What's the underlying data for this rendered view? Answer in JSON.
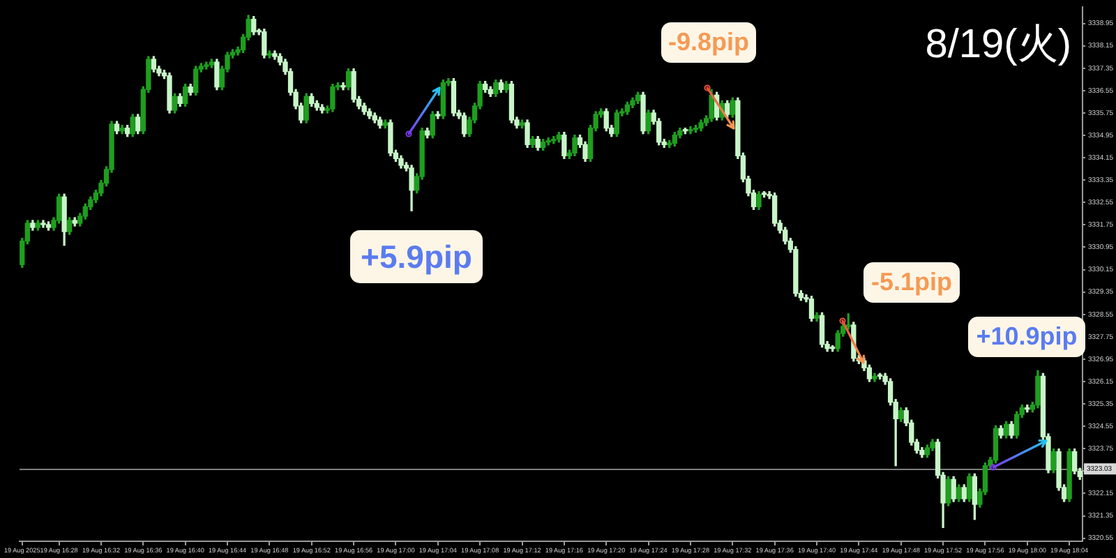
{
  "chart_data": {
    "type": "candlestick",
    "title": "8/19(火)",
    "categories": [
      "19 Aug 2025",
      null,
      null,
      null,
      null,
      null,
      null,
      "19 Aug 16:28",
      null,
      null,
      null,
      null,
      null,
      null,
      null,
      "19 Aug 16:32",
      null,
      null,
      null,
      null,
      null,
      null,
      null,
      "19 Aug 16:36",
      null,
      null,
      null,
      null,
      null,
      null,
      null,
      "19 Aug 16:40",
      null,
      null,
      null,
      null,
      null,
      null,
      null,
      "19 Aug 16:44",
      null,
      null,
      null,
      null,
      null,
      null,
      null,
      "19 Aug 16:48",
      null,
      null,
      null,
      null,
      null,
      null,
      null,
      "19 Aug 16:52",
      null,
      null,
      null,
      null,
      null,
      null,
      null,
      "19 Aug 16:56",
      null,
      null,
      null,
      null,
      null,
      null,
      null,
      "19 Aug 17:00",
      null,
      null,
      null,
      null,
      null,
      null,
      null,
      "19 Aug 17:04",
      null,
      null,
      null,
      null,
      null,
      null,
      null,
      "19 Aug 17:08",
      null,
      null,
      null,
      null,
      null,
      null,
      null,
      "19 Aug 17:12",
      null,
      null,
      null,
      null,
      null,
      null,
      null,
      "19 Aug 17:16",
      null,
      null,
      null,
      null,
      null,
      null,
      null,
      "19 Aug 17:20",
      null,
      null,
      null,
      null,
      null,
      null,
      null,
      "19 Aug 17:24",
      null,
      null,
      null,
      null,
      null,
      null,
      null,
      "19 Aug 17:28",
      null,
      null,
      null,
      null,
      null,
      null,
      null,
      "19 Aug 17:32",
      null,
      null,
      null,
      null,
      null,
      null,
      null,
      "19 Aug 17:36",
      null,
      null,
      null,
      null,
      null,
      null,
      null,
      "19 Aug 17:40",
      null,
      null,
      null,
      null,
      null,
      null,
      null,
      "19 Aug 17:44",
      null,
      null,
      null,
      null,
      null,
      null,
      null,
      "19 Aug 17:48",
      null,
      null,
      null,
      null,
      null,
      null,
      null,
      "19 Aug 17:52",
      null,
      null,
      null,
      null,
      null,
      null,
      null,
      "19 Aug 17:56",
      null,
      null,
      null,
      null,
      null,
      null,
      null,
      "19 Aug 18:00",
      null,
      null,
      null,
      null,
      null,
      null,
      null,
      "19 Aug 18:04",
      null,
      null
    ],
    "ohlc": [
      [
        3330.33,
        3331.27,
        3330.23,
        3331.17
      ],
      [
        3331.17,
        3331.91,
        3331.07,
        3331.81
      ],
      [
        3331.81,
        3331.91,
        3331.56,
        3331.66
      ],
      [
        3331.66,
        3331.91,
        3331.56,
        3331.81
      ],
      [
        3331.81,
        3331.91,
        3331.66,
        3331.76
      ],
      [
        3331.76,
        3331.86,
        3331.56,
        3331.66
      ],
      [
        3331.66,
        3332.01,
        3331.56,
        3331.91
      ],
      [
        3331.91,
        3332.85,
        3331.81,
        3332.75
      ],
      [
        3332.75,
        3332.85,
        3331.02,
        3331.51
      ],
      [
        3331.51,
        3332.01,
        3331.41,
        3331.91
      ],
      [
        3331.91,
        3332.01,
        3331.71,
        3331.81
      ],
      [
        3331.81,
        3332.16,
        3331.71,
        3332.06
      ],
      [
        3332.06,
        3332.5,
        3331.96,
        3332.4
      ],
      [
        3332.4,
        3332.75,
        3332.3,
        3332.65
      ],
      [
        3332.65,
        3332.99,
        3332.55,
        3332.89
      ],
      [
        3332.89,
        3333.34,
        3332.79,
        3333.24
      ],
      [
        3333.24,
        3333.83,
        3333.14,
        3333.73
      ],
      [
        3333.73,
        3335.45,
        3333.63,
        3335.35
      ],
      [
        3335.35,
        3335.45,
        3335.01,
        3335.11
      ],
      [
        3335.11,
        3335.31,
        3335.01,
        3335.21
      ],
      [
        3335.21,
        3335.31,
        3334.91,
        3335.01
      ],
      [
        3335.01,
        3335.7,
        3334.91,
        3335.6
      ],
      [
        3335.6,
        3335.7,
        3335.01,
        3335.11
      ],
      [
        3335.11,
        3336.69,
        3335.01,
        3336.59
      ],
      [
        3336.59,
        3337.77,
        3336.49,
        3337.67
      ],
      [
        3337.67,
        3337.77,
        3337.22,
        3337.32
      ],
      [
        3337.32,
        3337.42,
        3337.08,
        3337.18
      ],
      [
        3337.18,
        3337.28,
        3336.98,
        3337.08
      ],
      [
        3337.08,
        3337.18,
        3335.75,
        3335.85
      ],
      [
        3335.85,
        3336.44,
        3335.75,
        3336.34
      ],
      [
        3336.34,
        3336.44,
        3335.99,
        3336.09
      ],
      [
        3336.09,
        3336.78,
        3335.99,
        3336.68
      ],
      [
        3336.68,
        3336.78,
        3336.39,
        3336.49
      ],
      [
        3336.49,
        3337.42,
        3336.39,
        3337.32
      ],
      [
        3337.32,
        3337.52,
        3337.22,
        3337.42
      ],
      [
        3337.42,
        3337.57,
        3337.32,
        3337.47
      ],
      [
        3337.47,
        3337.67,
        3337.37,
        3337.57
      ],
      [
        3337.57,
        3337.67,
        3336.58,
        3336.68
      ],
      [
        3336.68,
        3337.42,
        3336.58,
        3337.32
      ],
      [
        3337.32,
        3337.92,
        3337.22,
        3337.82
      ],
      [
        3337.82,
        3338.02,
        3337.72,
        3337.92
      ],
      [
        3337.92,
        3338.11,
        3337.82,
        3338.01
      ],
      [
        3338.01,
        3338.56,
        3337.91,
        3338.46
      ],
      [
        3338.46,
        3339.24,
        3338.36,
        3339.1
      ],
      [
        3339.1,
        3339.2,
        3338.55,
        3338.65
      ],
      [
        3338.65,
        3338.75,
        3338.55,
        3338.65
      ],
      [
        3338.65,
        3338.75,
        3337.72,
        3337.82
      ],
      [
        3337.82,
        3337.97,
        3337.72,
        3337.87
      ],
      [
        3337.87,
        3337.97,
        3337.67,
        3337.77
      ],
      [
        3337.77,
        3337.87,
        3337.47,
        3337.57
      ],
      [
        3337.57,
        3337.67,
        3337.13,
        3337.23
      ],
      [
        3337.23,
        3337.33,
        3336.39,
        3336.49
      ],
      [
        3336.49,
        3336.59,
        3335.9,
        3336.0
      ],
      [
        3336.0,
        3336.1,
        3335.4,
        3335.5
      ],
      [
        3335.5,
        3336.44,
        3335.4,
        3336.34
      ],
      [
        3336.34,
        3336.44,
        3335.99,
        3336.09
      ],
      [
        3336.09,
        3336.19,
        3335.85,
        3335.95
      ],
      [
        3335.95,
        3336.05,
        3335.75,
        3335.85
      ],
      [
        3335.85,
        3336.0,
        3335.75,
        3335.9
      ],
      [
        3335.9,
        3336.78,
        3335.8,
        3336.68
      ],
      [
        3336.68,
        3336.83,
        3336.58,
        3336.73
      ],
      [
        3336.73,
        3336.83,
        3336.58,
        3336.68
      ],
      [
        3336.68,
        3337.33,
        3336.58,
        3337.23
      ],
      [
        3337.23,
        3337.33,
        3336.14,
        3336.24
      ],
      [
        3336.24,
        3336.34,
        3335.9,
        3336.0
      ],
      [
        3336.0,
        3336.1,
        3335.7,
        3335.8
      ],
      [
        3335.8,
        3335.9,
        3335.55,
        3335.65
      ],
      [
        3335.65,
        3335.75,
        3335.4,
        3335.5
      ],
      [
        3335.5,
        3335.6,
        3335.21,
        3335.31
      ],
      [
        3335.31,
        3335.5,
        3335.21,
        3335.4
      ],
      [
        3335.4,
        3335.5,
        3334.22,
        3334.32
      ],
      [
        3334.32,
        3334.42,
        3334.02,
        3334.12
      ],
      [
        3334.12,
        3334.22,
        3333.78,
        3333.88
      ],
      [
        3333.88,
        3333.98,
        3333.68,
        3333.78
      ],
      [
        3333.78,
        3333.88,
        3332.25,
        3332.99
      ],
      [
        3332.99,
        3333.58,
        3332.89,
        3333.48
      ],
      [
        3333.48,
        3335.21,
        3333.38,
        3335.11
      ],
      [
        3335.11,
        3335.21,
        3334.86,
        3334.96
      ],
      [
        3334.96,
        3335.8,
        3334.86,
        3335.7
      ],
      [
        3335.7,
        3335.8,
        3335.55,
        3335.65
      ],
      [
        3335.65,
        3336.93,
        3335.55,
        3336.83
      ],
      [
        3336.83,
        3336.98,
        3336.73,
        3336.88
      ],
      [
        3336.88,
        3336.98,
        3335.65,
        3335.75
      ],
      [
        3335.75,
        3335.85,
        3335.55,
        3335.65
      ],
      [
        3335.65,
        3335.75,
        3334.91,
        3335.01
      ],
      [
        3335.01,
        3335.6,
        3334.91,
        3335.5
      ],
      [
        3335.5,
        3336.1,
        3335.4,
        3336.0
      ],
      [
        3336.0,
        3336.88,
        3335.9,
        3336.78
      ],
      [
        3336.78,
        3336.88,
        3336.49,
        3336.59
      ],
      [
        3336.59,
        3336.69,
        3336.34,
        3336.44
      ],
      [
        3336.44,
        3336.93,
        3336.34,
        3336.83
      ],
      [
        3336.83,
        3336.93,
        3336.49,
        3336.59
      ],
      [
        3336.59,
        3336.88,
        3336.49,
        3336.78
      ],
      [
        3336.78,
        3336.88,
        3335.4,
        3335.5
      ],
      [
        3335.5,
        3335.6,
        3335.21,
        3335.31
      ],
      [
        3335.31,
        3335.5,
        3335.21,
        3335.4
      ],
      [
        3335.4,
        3335.5,
        3334.52,
        3334.62
      ],
      [
        3334.62,
        3334.91,
        3334.52,
        3334.81
      ],
      [
        3334.81,
        3334.91,
        3334.42,
        3334.52
      ],
      [
        3334.52,
        3334.81,
        3334.42,
        3334.71
      ],
      [
        3334.71,
        3334.86,
        3334.61,
        3334.76
      ],
      [
        3334.76,
        3334.91,
        3334.66,
        3334.81
      ],
      [
        3334.81,
        3335.06,
        3334.71,
        3334.96
      ],
      [
        3334.96,
        3335.06,
        3334.12,
        3334.22
      ],
      [
        3334.22,
        3334.42,
        3334.12,
        3334.32
      ],
      [
        3334.32,
        3334.96,
        3334.22,
        3334.86
      ],
      [
        3334.86,
        3334.96,
        3334.52,
        3334.62
      ],
      [
        3334.62,
        3334.72,
        3334.02,
        3334.12
      ],
      [
        3334.12,
        3335.31,
        3334.02,
        3335.21
      ],
      [
        3335.21,
        3335.8,
        3335.11,
        3335.7
      ],
      [
        3335.7,
        3335.9,
        3335.6,
        3335.8
      ],
      [
        3335.8,
        3335.9,
        3335.11,
        3335.21
      ],
      [
        3335.21,
        3335.31,
        3334.91,
        3335.01
      ],
      [
        3335.01,
        3335.85,
        3334.91,
        3335.75
      ],
      [
        3335.75,
        3335.9,
        3335.65,
        3335.8
      ],
      [
        3335.8,
        3336.14,
        3335.7,
        3336.04
      ],
      [
        3336.04,
        3336.29,
        3335.94,
        3336.19
      ],
      [
        3336.19,
        3336.49,
        3336.09,
        3336.39
      ],
      [
        3336.39,
        3336.49,
        3335.01,
        3335.11
      ],
      [
        3335.11,
        3335.85,
        3335.01,
        3335.75
      ],
      [
        3335.75,
        3335.85,
        3335.35,
        3335.45
      ],
      [
        3335.45,
        3335.55,
        3334.61,
        3334.71
      ],
      [
        3334.71,
        3334.81,
        3334.52,
        3334.62
      ],
      [
        3334.62,
        3334.77,
        3334.52,
        3334.67
      ],
      [
        3334.67,
        3335.06,
        3334.57,
        3334.96
      ],
      [
        3334.96,
        3335.21,
        3334.86,
        3335.11
      ],
      [
        3335.11,
        3335.21,
        3335.01,
        3335.11
      ],
      [
        3335.11,
        3335.26,
        3335.01,
        3335.16
      ],
      [
        3335.16,
        3335.31,
        3335.06,
        3335.21
      ],
      [
        3335.21,
        3335.5,
        3335.11,
        3335.4
      ],
      [
        3335.4,
        3335.65,
        3335.3,
        3335.55
      ],
      [
        3335.55,
        3336.59,
        3335.45,
        3336.39
      ],
      [
        3336.39,
        3336.49,
        3335.5,
        3335.6
      ],
      [
        3335.6,
        3336.19,
        3335.5,
        3336.09
      ],
      [
        3336.09,
        3336.19,
        3335.6,
        3335.7
      ],
      [
        3335.7,
        3336.29,
        3335.6,
        3336.19
      ],
      [
        3336.19,
        3336.29,
        3334.12,
        3334.22
      ],
      [
        3334.22,
        3334.32,
        3333.29,
        3333.39
      ],
      [
        3333.39,
        3333.49,
        3332.79,
        3332.89
      ],
      [
        3332.89,
        3332.99,
        3332.3,
        3332.4
      ],
      [
        3332.4,
        3332.94,
        3332.3,
        3332.84
      ],
      [
        3332.84,
        3332.94,
        3332.74,
        3332.84
      ],
      [
        3332.84,
        3332.94,
        3332.69,
        3332.79
      ],
      [
        3332.79,
        3332.89,
        3331.71,
        3331.81
      ],
      [
        3331.81,
        3331.91,
        3331.46,
        3331.56
      ],
      [
        3331.56,
        3331.66,
        3331.07,
        3331.17
      ],
      [
        3331.17,
        3331.27,
        3330.77,
        3330.87
      ],
      [
        3330.87,
        3330.97,
        3329.2,
        3329.3
      ],
      [
        3329.3,
        3329.4,
        3329.05,
        3329.15
      ],
      [
        3329.15,
        3329.25,
        3329.0,
        3329.1
      ],
      [
        3329.1,
        3329.2,
        3328.31,
        3328.41
      ],
      [
        3328.41,
        3328.61,
        3328.31,
        3328.51
      ],
      [
        3328.51,
        3328.61,
        3327.38,
        3327.48
      ],
      [
        3327.48,
        3327.58,
        3327.23,
        3327.33
      ],
      [
        3327.33,
        3327.43,
        3327.23,
        3327.33
      ],
      [
        3327.33,
        3327.97,
        3327.23,
        3327.87
      ],
      [
        3327.87,
        3328.22,
        3327.77,
        3328.12
      ],
      [
        3328.12,
        3328.57,
        3328.02,
        3328.17
      ],
      [
        3328.17,
        3328.27,
        3326.88,
        3326.98
      ],
      [
        3326.98,
        3327.08,
        3326.79,
        3326.89
      ],
      [
        3326.89,
        3326.99,
        3326.54,
        3326.64
      ],
      [
        3326.64,
        3326.74,
        3326.15,
        3326.25
      ],
      [
        3326.25,
        3326.44,
        3326.15,
        3326.34
      ],
      [
        3326.34,
        3326.44,
        3326.24,
        3326.34
      ],
      [
        3326.34,
        3326.44,
        3326.05,
        3326.15
      ],
      [
        3326.15,
        3326.25,
        3325.31,
        3325.41
      ],
      [
        3325.41,
        3325.51,
        3323.14,
        3324.82
      ],
      [
        3324.82,
        3325.21,
        3324.72,
        3325.11
      ],
      [
        3325.11,
        3325.21,
        3324.57,
        3324.67
      ],
      [
        3324.67,
        3324.77,
        3323.88,
        3323.98
      ],
      [
        3323.98,
        3324.08,
        3323.59,
        3323.69
      ],
      [
        3323.69,
        3323.79,
        3323.44,
        3323.54
      ],
      [
        3323.54,
        3323.88,
        3323.44,
        3323.78
      ],
      [
        3323.78,
        3324.08,
        3323.68,
        3323.98
      ],
      [
        3323.98,
        3324.08,
        3322.7,
        3322.8
      ],
      [
        3322.8,
        3322.9,
        3320.93,
        3321.81
      ],
      [
        3321.81,
        3322.75,
        3321.71,
        3322.65
      ],
      [
        3322.65,
        3322.75,
        3321.86,
        3321.96
      ],
      [
        3321.96,
        3322.46,
        3321.86,
        3322.36
      ],
      [
        3322.36,
        3322.46,
        3321.86,
        3321.96
      ],
      [
        3321.96,
        3322.85,
        3321.86,
        3322.75
      ],
      [
        3322.75,
        3322.85,
        3321.22,
        3321.76
      ],
      [
        3321.76,
        3322.31,
        3321.66,
        3322.21
      ],
      [
        3322.21,
        3323.24,
        3322.11,
        3323.14
      ],
      [
        3323.14,
        3323.44,
        3323.04,
        3323.34
      ],
      [
        3323.34,
        3324.57,
        3323.24,
        3324.47
      ],
      [
        3324.47,
        3324.57,
        3324.13,
        3324.23
      ],
      [
        3324.23,
        3324.72,
        3324.13,
        3324.62
      ],
      [
        3324.62,
        3324.72,
        3324.13,
        3324.23
      ],
      [
        3324.23,
        3325.07,
        3324.13,
        3324.97
      ],
      [
        3324.97,
        3325.31,
        3324.87,
        3325.21
      ],
      [
        3325.21,
        3325.31,
        3325.06,
        3325.16
      ],
      [
        3325.16,
        3325.41,
        3325.06,
        3325.31
      ],
      [
        3325.31,
        3326.54,
        3325.21,
        3326.34
      ],
      [
        3326.34,
        3326.44,
        3324.08,
        3324.18
      ],
      [
        3324.18,
        3324.28,
        3322.89,
        3322.99
      ],
      [
        3322.99,
        3323.74,
        3322.89,
        3323.64
      ],
      [
        3323.64,
        3323.74,
        3322.26,
        3322.36
      ],
      [
        3322.36,
        3322.46,
        3321.86,
        3321.96
      ],
      [
        3321.96,
        3323.74,
        3321.86,
        3323.64
      ],
      [
        3323.64,
        3323.74,
        3322.85,
        3322.95
      ],
      [
        3322.95,
        3323.05,
        3322.65,
        3322.75
      ]
    ],
    "colors": [
      "#1e9e1e",
      "#1e9e1e",
      "#c8f5c8",
      "#1e9e1e",
      "#c8f5c8",
      "#c8f5c8",
      "#1e9e1e",
      "#1e9e1e",
      "#c8f5c8",
      "#1e9e1e",
      "#c8f5c8",
      "#1e9e1e",
      "#1e9e1e",
      "#1e9e1e",
      "#1e9e1e",
      "#1e9e1e",
      "#1e9e1e",
      "#1e9e1e",
      "#c8f5c8",
      "#1e9e1e",
      "#c8f5c8",
      "#1e9e1e",
      "#c8f5c8",
      "#1e9e1e",
      "#1e9e1e",
      "#c8f5c8",
      "#c8f5c8",
      "#c8f5c8",
      "#c8f5c8",
      "#1e9e1e",
      "#c8f5c8",
      "#1e9e1e",
      "#c8f5c8",
      "#1e9e1e",
      "#1e9e1e",
      "#1e9e1e",
      "#1e9e1e",
      "#c8f5c8",
      "#1e9e1e",
      "#1e9e1e",
      "#1e9e1e",
      "#1e9e1e",
      "#1e9e1e",
      "#1e9e1e",
      "#c8f5c8",
      "#c8f5c8",
      "#c8f5c8",
      "#1e9e1e",
      "#c8f5c8",
      "#c8f5c8",
      "#c8f5c8",
      "#c8f5c8",
      "#c8f5c8",
      "#c8f5c8",
      "#1e9e1e",
      "#c8f5c8",
      "#c8f5c8",
      "#c8f5c8",
      "#1e9e1e",
      "#1e9e1e",
      "#1e9e1e",
      "#c8f5c8",
      "#1e9e1e",
      "#c8f5c8",
      "#c8f5c8",
      "#c8f5c8",
      "#c8f5c8",
      "#c8f5c8",
      "#c8f5c8",
      "#1e9e1e",
      "#c8f5c8",
      "#c8f5c8",
      "#c8f5c8",
      "#c8f5c8",
      "#c8f5c8",
      "#1e9e1e",
      "#1e9e1e",
      "#c8f5c8",
      "#1e9e1e",
      "#c8f5c8",
      "#1e9e1e",
      "#1e9e1e",
      "#c8f5c8",
      "#c8f5c8",
      "#c8f5c8",
      "#1e9e1e",
      "#1e9e1e",
      "#1e9e1e",
      "#c8f5c8",
      "#c8f5c8",
      "#1e9e1e",
      "#c8f5c8",
      "#1e9e1e",
      "#c8f5c8",
      "#c8f5c8",
      "#1e9e1e",
      "#c8f5c8",
      "#1e9e1e",
      "#c8f5c8",
      "#1e9e1e",
      "#1e9e1e",
      "#1e9e1e",
      "#1e9e1e",
      "#c8f5c8",
      "#1e9e1e",
      "#1e9e1e",
      "#c8f5c8",
      "#c8f5c8",
      "#1e9e1e",
      "#1e9e1e",
      "#1e9e1e",
      "#c8f5c8",
      "#c8f5c8",
      "#1e9e1e",
      "#1e9e1e",
      "#1e9e1e",
      "#1e9e1e",
      "#1e9e1e",
      "#c8f5c8",
      "#1e9e1e",
      "#c8f5c8",
      "#c8f5c8",
      "#c8f5c8",
      "#1e9e1e",
      "#1e9e1e",
      "#1e9e1e",
      "#c8f5c8",
      "#1e9e1e",
      "#1e9e1e",
      "#1e9e1e",
      "#1e9e1e",
      "#1e9e1e",
      "#c8f5c8",
      "#1e9e1e",
      "#c8f5c8",
      "#1e9e1e",
      "#c8f5c8",
      "#c8f5c8",
      "#c8f5c8",
      "#c8f5c8",
      "#1e9e1e",
      "#c8f5c8",
      "#c8f5c8",
      "#c8f5c8",
      "#c8f5c8",
      "#c8f5c8",
      "#c8f5c8",
      "#c8f5c8",
      "#c8f5c8",
      "#c8f5c8",
      "#c8f5c8",
      "#1e9e1e",
      "#c8f5c8",
      "#c8f5c8",
      "#c8f5c8",
      "#1e9e1e",
      "#1e9e1e",
      "#1e9e1e",
      "#c8f5c8",
      "#c8f5c8",
      "#c8f5c8",
      "#c8f5c8",
      "#1e9e1e",
      "#c8f5c8",
      "#c8f5c8",
      "#c8f5c8",
      "#c8f5c8",
      "#1e9e1e",
      "#c8f5c8",
      "#c8f5c8",
      "#c8f5c8",
      "#c8f5c8",
      "#1e9e1e",
      "#1e9e1e",
      "#c8f5c8",
      "#c8f5c8",
      "#1e9e1e",
      "#c8f5c8",
      "#1e9e1e",
      "#c8f5c8",
      "#1e9e1e",
      "#c8f5c8",
      "#1e9e1e",
      "#1e9e1e",
      "#1e9e1e",
      "#1e9e1e",
      "#c8f5c8",
      "#1e9e1e",
      "#c8f5c8",
      "#1e9e1e",
      "#1e9e1e",
      "#c8f5c8",
      "#1e9e1e",
      "#1e9e1e",
      "#c8f5c8",
      "#c8f5c8",
      "#1e9e1e",
      "#c8f5c8",
      "#c8f5c8",
      "#1e9e1e",
      "#c8f5c8",
      "#c8f5c8"
    ],
    "ylim": [
      3320.44,
      3339.54
    ],
    "yticks": [
      3338.95,
      3338.15,
      3337.35,
      3336.55,
      3335.75,
      3334.95,
      3334.15,
      3333.35,
      3332.55,
      3331.75,
      3330.95,
      3330.15,
      3329.35,
      3328.55,
      3327.75,
      3326.95,
      3326.15,
      3325.35,
      3324.55,
      3323.75,
      {
        "value": 3322.95,
        "label": null
      },
      3322.15,
      3321.35,
      3320.55
    ],
    "ref_lines": [
      {
        "axis": "y",
        "value": 3323.03,
        "label": "3323.03",
        "color": "#7f7f7f"
      }
    ],
    "annotations": [
      "+5.9pip",
      "-9.8pip",
      "-5.1pip",
      "+10.9pip"
    ]
  }
}
